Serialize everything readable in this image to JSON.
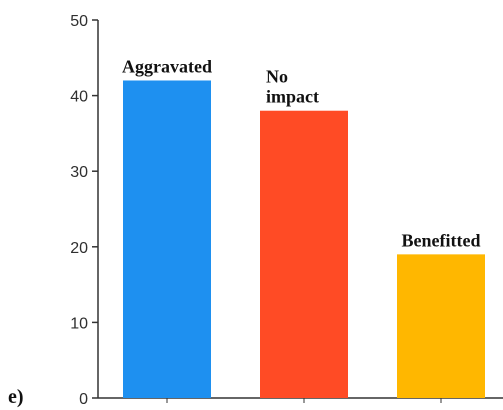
{
  "panel_label": "e)",
  "chart_data": {
    "type": "bar",
    "categories": [
      "Aggravated",
      "No impact",
      "Benefitted"
    ],
    "values": [
      42,
      38,
      19
    ],
    "bar_labels": [
      [
        "Aggravated"
      ],
      [
        "No",
        "impact"
      ],
      [
        "Benefitted"
      ]
    ],
    "colors": [
      "#1E90F0",
      "#FF4B25",
      "#FFB700"
    ],
    "ylim": [
      0,
      50
    ],
    "yticks": [
      0,
      10,
      20,
      30,
      40,
      50
    ],
    "xlabel": "",
    "ylabel": "",
    "title": "",
    "grid": false,
    "legend": "none"
  }
}
